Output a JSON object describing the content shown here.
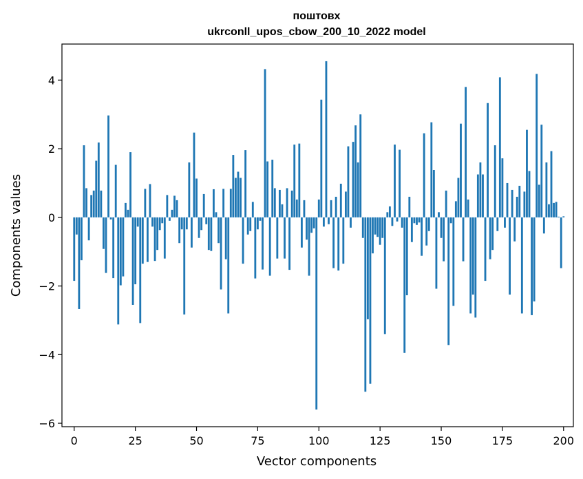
{
  "chart_data": {
    "type": "bar",
    "title": "поштовх",
    "subtitle": "ukrconll_upos_cbow_200_10_2022 model",
    "xlabel": "Vector components",
    "ylabel": "Components values",
    "xlim": [
      -5,
      204
    ],
    "ylim": [
      -6.1,
      5.05
    ],
    "xticks": [
      0,
      25,
      50,
      75,
      100,
      125,
      150,
      175,
      200
    ],
    "yticks": [
      -6,
      -4,
      -2,
      0,
      2,
      4
    ],
    "grid": false,
    "bar_color": "#1f77b4",
    "series": [
      {
        "values": [
          -1.85,
          -0.5,
          -2.67,
          -1.25,
          2.1,
          0.85,
          -0.67,
          0.65,
          0.78,
          1.65,
          2.18,
          0.78,
          -0.92,
          -1.62,
          2.97,
          -0.06,
          -1.77,
          1.53,
          -3.12,
          -1.98,
          -1.72,
          0.42,
          0.22,
          1.9,
          -2.55,
          -1.95,
          -0.27,
          -3.08,
          -1.35,
          0.83,
          -1.3,
          0.97,
          -0.27,
          -1.27,
          -0.95,
          -0.37,
          -0.17,
          -1.2,
          0.65,
          -0.1,
          0.22,
          0.63,
          0.5,
          -0.75,
          -0.35,
          -2.83,
          -0.35,
          1.6,
          -0.88,
          2.47,
          1.13,
          -0.6,
          -0.37,
          0.68,
          -0.2,
          -0.95,
          -0.98,
          0.82,
          0.15,
          -0.75,
          -2.1,
          0.83,
          -1.22,
          -2.8,
          0.83,
          1.82,
          1.15,
          1.33,
          1.15,
          -1.35,
          1.96,
          -0.5,
          -0.4,
          0.45,
          -1.78,
          -0.35,
          -0.1,
          -1.52,
          4.32,
          1.63,
          -1.7,
          1.68,
          0.85,
          -1.2,
          0.8,
          0.38,
          -1.2,
          0.85,
          -1.53,
          0.78,
          2.12,
          0.52,
          2.15,
          -0.88,
          0.5,
          -0.65,
          -1.7,
          -0.45,
          -0.32,
          -5.6,
          0.52,
          3.43,
          -0.27,
          4.55,
          -0.2,
          0.5,
          -1.48,
          0.6,
          -1.55,
          0.98,
          -1.35,
          0.75,
          2.07,
          -0.3,
          2.2,
          2.68,
          1.6,
          3.0,
          -0.6,
          -5.08,
          -2.97,
          -4.85,
          -1.05,
          -0.5,
          -0.57,
          -0.8,
          -0.6,
          -3.4,
          0.15,
          0.32,
          -0.25,
          2.12,
          -0.12,
          1.97,
          -0.3,
          -3.95,
          -2.27,
          0.6,
          -0.72,
          -0.17,
          -0.22,
          -0.15,
          -1.12,
          2.45,
          -0.82,
          -0.4,
          2.77,
          1.38,
          -2.08,
          0.15,
          -0.6,
          -1.28,
          0.78,
          -3.72,
          -0.17,
          -2.58,
          0.47,
          1.15,
          2.73,
          -1.28,
          3.8,
          0.52,
          -2.8,
          -2.25,
          -2.92,
          1.25,
          1.6,
          1.25,
          -1.85,
          3.33,
          -1.22,
          -0.95,
          2.1,
          -0.4,
          4.08,
          1.72,
          -0.3,
          1.0,
          -2.25,
          0.8,
          -0.7,
          0.6,
          0.92,
          -2.8,
          0.75,
          2.55,
          1.35,
          -2.85,
          -2.45,
          4.18,
          0.95,
          2.7,
          -0.47,
          1.6,
          0.38,
          1.93,
          0.42,
          0.45,
          0.02,
          -1.48,
          0.03
        ]
      }
    ]
  }
}
